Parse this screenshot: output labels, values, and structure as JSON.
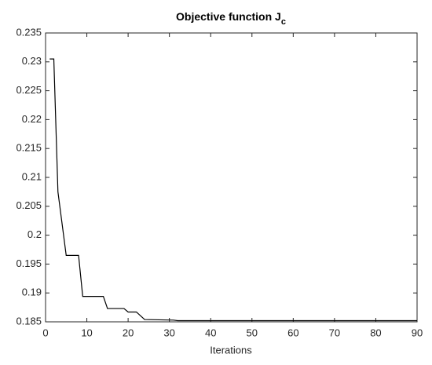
{
  "chart_data": {
    "type": "line",
    "title": "Objective function J",
    "title_subscript": "c",
    "xlabel": "Iterations",
    "x": [
      1,
      2,
      3,
      5,
      8,
      9,
      14,
      15,
      19,
      20,
      22,
      24,
      31,
      32,
      90
    ],
    "series": [
      {
        "color": "#000000",
        "values": [
          0.2305,
          0.2305,
          0.2075,
          0.1965,
          0.1965,
          0.1894,
          0.1894,
          0.1873,
          0.1873,
          0.1867,
          0.1867,
          0.1854,
          0.1853,
          0.1852,
          0.1852
        ]
      }
    ],
    "xlim": [
      0,
      90
    ],
    "xticks": [
      0,
      10,
      20,
      30,
      40,
      50,
      60,
      70,
      80,
      90
    ],
    "ylim": [
      0.185,
      0.235
    ],
    "yticks": [
      0.185,
      0.19,
      0.195,
      0.2,
      0.205,
      0.21,
      0.215,
      0.22,
      0.225,
      0.23,
      0.235
    ],
    "grid": false
  }
}
